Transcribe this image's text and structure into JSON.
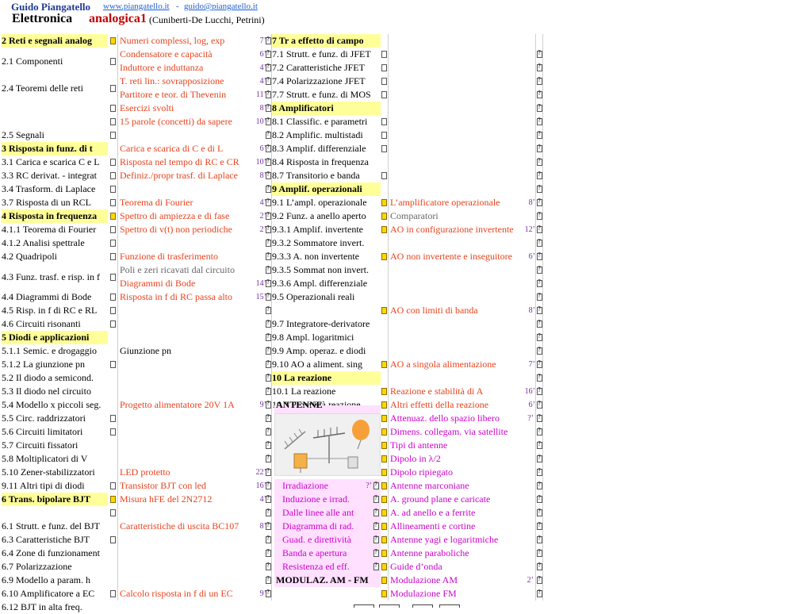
{
  "header": {
    "author": "Guido Piangatello",
    "website": "www.piangatello.it",
    "separator": "-",
    "email": "guido@piangatello.it",
    "title_part1": "Elettronica",
    "title_part2": "analogica1",
    "authors_note": "(Cuniberti-De Lucchi, Petrini)"
  },
  "colA": [
    {
      "t": "2  Reti e segnali analog",
      "h": 1,
      "e": 1
    },
    {
      "t": "2.1  Componenti",
      "s": 2,
      "e": 1
    },
    {
      "t": "2.4  Teoremi delle reti",
      "s": 2,
      "e": 1
    },
    {
      "t": "",
      "e": 1
    },
    {
      "t": "",
      "e": 1
    },
    {
      "t": "2.5  Segnali",
      "e": 1
    },
    {
      "t": "3    Risposta in funz. di t",
      "h": 1
    },
    {
      "t": "3.1  Carica e scarica C e L",
      "e": 1
    },
    {
      "t": "3.3  RC derivat. - integrat",
      "e": 1
    },
    {
      "t": "3.4  Trasform. di Laplace",
      "e": 1
    },
    {
      "t": "3.7  Risposta di un RCL",
      "e": 1
    },
    {
      "t": "4  Risposta in frequenza",
      "h": 1,
      "e": 1
    },
    {
      "t": "4.1.1  Teorema di Fourier",
      "e": 1
    },
    {
      "t": "4.1.2  Analisi spettrale",
      "e": 1
    },
    {
      "t": "4.2  Quadripoli",
      "e": 1
    },
    {
      "t": "4.3  Funz. trasf. e risp. in f",
      "s": 2,
      "e": 1
    },
    {
      "t": "4.4  Diagrammi di Bode",
      "e": 1
    },
    {
      "t": "4.5  Risp. in f di RC e RL",
      "e": 1
    },
    {
      "t": "4.6  Circuiti risonanti",
      "e": 1
    },
    {
      "t": "5    Diodi e applicazioni",
      "h": 1
    },
    {
      "t": "5.1.1  Semic. e drogaggio",
      "e": 0
    },
    {
      "t": "5.1.2  La giunzione pn",
      "e": 1
    },
    {
      "t": "5.2  Il diodo a semicond.",
      "e": 0
    },
    {
      "t": "5.3  Il diodo nel circuito",
      "e": 0
    },
    {
      "t": "5.4  Modello x piccoli seg.",
      "e": 0
    },
    {
      "t": "5.5  Circ. raddrizzatori",
      "e": 1
    },
    {
      "t": "5.6  Circuiti limitatori",
      "e": 1
    },
    {
      "t": "5.7  Circuiti fissatori",
      "e": 0
    },
    {
      "t": "5.8  Moltiplicatori di V",
      "e": 0
    },
    {
      "t": "5.10  Zener-stabilizzatori",
      "e": 0
    },
    {
      "t": "9.11  Altri tipi di diodi",
      "e": 1
    },
    {
      "t": "6  Trans. bipolare BJT",
      "h": 1,
      "e": 1
    },
    {
      "t": "",
      "e": 1
    },
    {
      "t": "6.1  Strutt. e funz. del BJT",
      "e": 0
    },
    {
      "t": "6.3  Caratteristiche BJT",
      "e": 1
    },
    {
      "t": "6.4  Zone di funzionament",
      "e": 0
    },
    {
      "t": "6.7  Polarizzazione",
      "e": 0
    },
    {
      "t": "6.9  Modello a param. h",
      "e": 0
    },
    {
      "t": "6.10  Amplificatore a EC",
      "e": 1
    },
    {
      "t": "6.12  BJT in alta freq.",
      "e": 0
    }
  ],
  "colB": [
    {
      "r": 0,
      "t": "Numeri complessi, log, exp",
      "m": "7’",
      "c": "lk"
    },
    {
      "r": 1,
      "t": "Condensatore e capacità",
      "m": "6’",
      "c": "lk"
    },
    {
      "r": 2,
      "t": "Induttore e induttanza",
      "m": "4’",
      "c": "lk"
    },
    {
      "r": 3,
      "t": "T. reti lin.: sovrapposizione",
      "m": "4’",
      "c": "lk"
    },
    {
      "r": 4,
      "t": "Partitore e teor. di Thevenin",
      "m": "11’",
      "c": "lk"
    },
    {
      "r": 5,
      "t": "Esercizi svolti",
      "m": "8’",
      "c": "lk"
    },
    {
      "r": 6,
      "t": "15 parole (concetti) da sapere",
      "m": "10’",
      "c": "lk"
    },
    {
      "r": 8,
      "t": "Carica e scarica di C e di L",
      "m": "6’",
      "c": "lk"
    },
    {
      "r": 9,
      "t": "Risposta nel tempo di RC e CR",
      "m": "10’",
      "c": "lk"
    },
    {
      "r": 10,
      "t": "Definiz./propr trasf. di Laplace",
      "m": "8’",
      "c": "lk"
    },
    {
      "r": 12,
      "t": "Teorema di Fourier",
      "m": "4’",
      "c": "lk"
    },
    {
      "r": 13,
      "t": "Spettro di ampiezza e di fase",
      "m": "2’",
      "c": "lk"
    },
    {
      "r": 14,
      "t": "Spettro di v(t) non periodiche",
      "m": "2’",
      "c": "lk"
    },
    {
      "r": 16,
      "t": "Funzione di trasferimento",
      "c": "lk"
    },
    {
      "r": 17,
      "t": "Poli e zeri ricavati dal circuito",
      "c": "gy"
    },
    {
      "r": 18,
      "t": "Diagrammi di Bode",
      "m": "14’",
      "c": "lk"
    },
    {
      "r": 19,
      "t": "Risposta in f di RC passa alto",
      "m": "15’",
      "c": "lk"
    },
    {
      "r": 23,
      "t": "Giunzione pn",
      "c": ""
    },
    {
      "r": 27,
      "t": "Progetto alimentatore 20V 1A",
      "m": "9’",
      "c": "lk"
    },
    {
      "r": 32,
      "t": "LED protetto",
      "m": "22’",
      "c": "lk"
    },
    {
      "r": 33,
      "t": "Transistor BJT con led",
      "m": "16’",
      "c": "lk"
    },
    {
      "r": 34,
      "t": "Misura hFE del 2N2712",
      "m": "4’",
      "c": "lk"
    },
    {
      "r": 36,
      "t": "Caratteristiche di uscita BC107",
      "m": "8’",
      "c": "lk"
    },
    {
      "r": 41,
      "t": "Calcolo risposta in f di un EC",
      "m": "9’",
      "c": "lk"
    }
  ],
  "colC": [
    {
      "r": 0,
      "t": "7   Tr a effetto di campo",
      "h": 1
    },
    {
      "r": 1,
      "t": "7.1  Strutt. e funz. di JFET",
      "e": 1
    },
    {
      "r": 2,
      "t": "7.2  Caratteristiche JFET",
      "e": 1
    },
    {
      "r": 3,
      "t": "7.4  Polarizzazione JFET",
      "e": 1
    },
    {
      "r": 4,
      "t": "7.7  Strutt. e funz. di MOS",
      "e": 1
    },
    {
      "r": 5,
      "t": "8   Amplificatori",
      "h": 1
    },
    {
      "r": 6,
      "t": "8.1  Classific. e parametri",
      "e": 1
    },
    {
      "r": 7,
      "t": "8.2  Amplific. multistadi",
      "e": 1
    },
    {
      "r": 8,
      "t": "8.3  Amplif. differenziale",
      "e": 1
    },
    {
      "r": 9,
      "t": "8.4  Risposta in frequenza",
      "e": 0
    },
    {
      "r": 10,
      "t": "8.7  Transitorio e banda",
      "e": 1
    },
    {
      "r": 11,
      "t": "9   Amplif. operazionali",
      "h": 1
    },
    {
      "r": 12,
      "t": "9.1  L’ampl. operazionale",
      "e": 1
    },
    {
      "r": 13,
      "t": "9.2  Funz. a anello aperto",
      "e": 0
    },
    {
      "r": 14,
      "t": "9.3.1  Amplif. invertente",
      "e": 1
    },
    {
      "r": 15,
      "t": "9.3.2  Sommatore  invert.",
      "e": 0
    },
    {
      "r": 16,
      "t": "9.3.3  A. non invertente",
      "e": 1
    },
    {
      "r": 17,
      "t": "9.3.5  Sommat non invert.",
      "e": 0
    },
    {
      "r": 18,
      "t": "9.3.6  Ampl. differenziale",
      "e": 0
    },
    {
      "r": 19,
      "t": "9.5  Operazionali reali",
      "e": 0
    },
    {
      "r": 21,
      "t": "9.7  Integratore-derivatore",
      "e": 0
    },
    {
      "r": 22,
      "t": "9.8  Ampl. logaritmici",
      "e": 0
    },
    {
      "r": 23,
      "t": "9.9  Amp. operaz. e diodi",
      "e": 0
    },
    {
      "r": 24,
      "t": "9.10  AO a aliment. sing",
      "e": 1
    },
    {
      "r": 25,
      "t": "10  La reazione",
      "h": 1
    },
    {
      "r": 26,
      "t": "10.1  La reazione",
      "e": 1
    },
    {
      "r": 27,
      "t": "10.2  Proprietà reazione",
      "e": 1
    }
  ],
  "colD": [
    {
      "r": 12,
      "t": "L’amplificatore operazionale",
      "m": "8’",
      "c": "lk"
    },
    {
      "r": 13,
      "t": "Comparatori",
      "c": "gy"
    },
    {
      "r": 14,
      "t": "AO in configurazione invertente",
      "m": "12’",
      "c": "lk"
    },
    {
      "r": 16,
      "t": "AO non invertente e inseguitore",
      "m": "6’",
      "c": "lk"
    },
    {
      "r": 20,
      "t": "AO con limiti di banda",
      "m": "8’",
      "c": "lk"
    },
    {
      "r": 24,
      "t": "AO a singola alimentazione",
      "m": "7’",
      "c": "lk"
    },
    {
      "r": 26,
      "t": "Reazione e stabilità di A",
      "m": "16’",
      "c": "lk"
    },
    {
      "r": 27,
      "t": "Altri effetti della reazione",
      "m": "6’",
      "c": "lk"
    }
  ],
  "antenne": {
    "title": "ANTENNE",
    "left": [
      "Irradiazione",
      "Induzione e irrad.",
      "Dalle linee alle ant",
      "Diagramma di rad.",
      "Guad. e direttività",
      "Banda e apertura",
      "Resistenza ed eff."
    ],
    "left_time": "?’",
    "right": [
      "Attenuaz. dello spazio libero",
      "Dimens. collegam. via satellite",
      "Tipi di antenne",
      "Dipolo in λ/2",
      "Dipolo ripiegato",
      "Antenne marconiane",
      "A. ground plane e caricate",
      "A. ad anello e a ferrite",
      "Allineamenti e cortine",
      "Antenne yagi e logaritmiche",
      "Antenne paraboliche",
      "Guide d’onda",
      "Modulazione AM",
      "Modulazione FM"
    ],
    "right_time_first": "?’",
    "right_time_am": "2’",
    "modulaz_title": "MODULAZ. AM - FM"
  },
  "colors": {
    "header_bg": "#ffff99",
    "link": "#e8421c",
    "pink_link": "#cc00cc",
    "pink_bg": "#ffe0ff",
    "time": "#7030a0"
  }
}
